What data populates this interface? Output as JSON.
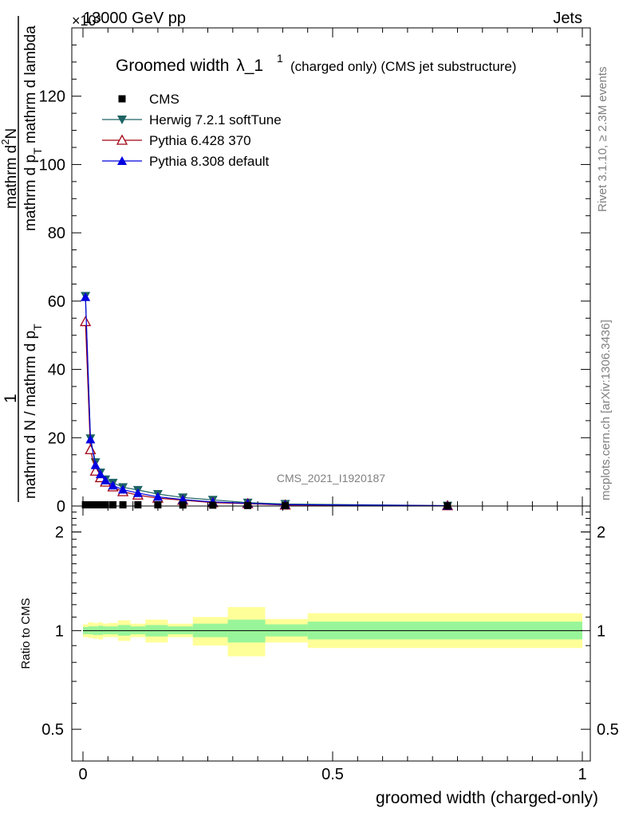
{
  "header": {
    "exponent": "×10³",
    "left": "13000 GeV pp",
    "right": "Jets"
  },
  "side_labels": {
    "rivet": "Rivet 3.1.10, ≥ 2.3M events",
    "mcplots": "mcplots.cern.ch [arXiv:1306.3436]"
  },
  "watermark": "CMS_2021_I1920187",
  "chart_data": [
    {
      "type": "line",
      "title": {
        "main": "Groomed width",
        "lambda": "λ_1",
        "sup": "1",
        "sub": "(charged only) (CMS jet substructure)"
      },
      "ylabel": {
        "one": "1",
        "denominator": "mathrm d N / mathrm d p",
        "denominator_sub": "T",
        "numerator": "mathrm d",
        "numerator_sup": "2",
        "numerator_N": "N",
        "lower": "mathrm d p",
        "lower_sub": "T",
        "lower_tail": " mathrm d lambda"
      },
      "xlabel": "",
      "xlim": [
        0,
        1
      ],
      "ylim": [
        0,
        140
      ],
      "x_ticks": [
        0,
        0.5,
        1
      ],
      "y_ticks": [
        0,
        20,
        40,
        60,
        80,
        100,
        120
      ],
      "x": [
        0.005,
        0.015,
        0.025,
        0.035,
        0.045,
        0.06,
        0.08,
        0.11,
        0.15,
        0.2,
        0.26,
        0.33,
        0.405,
        0.73
      ],
      "series": [
        {
          "name": "CMS",
          "color": "#000000",
          "marker": "square",
          "values": [
            0.35,
            0.35,
            0.35,
            0.35,
            0.35,
            0.35,
            0.35,
            0.35,
            0.35,
            0.3,
            0.25,
            0.15,
            0.1,
            0.05
          ]
        },
        {
          "name": "Herwig 7.2.1 softTune",
          "color": "#1d6363",
          "marker": "triangle-down",
          "values": [
            61.5,
            19.8,
            12.8,
            9.8,
            7.8,
            6.8,
            5.5,
            4.7,
            3.5,
            2.5,
            1.8,
            1.0,
            0.6,
            0.1
          ]
        },
        {
          "name": "Pythia 6.428 370",
          "color": "#a00010",
          "marker": "triangle-open",
          "values": [
            54,
            16.5,
            10.2,
            8.3,
            7.0,
            5.6,
            4.2,
            3.2,
            2.3,
            1.7,
            1.0,
            0.7,
            0.3,
            0.1
          ]
        },
        {
          "name": "Pythia 8.308 default",
          "color": "#0000e0",
          "marker": "triangle-up",
          "values": [
            61.2,
            19.5,
            12,
            9.3,
            7.5,
            6.0,
            4.8,
            3.8,
            2.7,
            1.9,
            1.2,
            0.8,
            0.4,
            0.1
          ]
        }
      ]
    },
    {
      "type": "area",
      "ylabel": "Ratio to CMS",
      "xlabel": "groomed width (charged-only)",
      "xlim": [
        0,
        1
      ],
      "ylim": [
        0.4,
        2.4
      ],
      "y_scale": "log",
      "x_ticks": [
        0,
        0.5,
        1
      ],
      "x_tick_labels": [
        "0",
        "0.5",
        "1"
      ],
      "y_ticks": [
        0.5,
        1,
        2
      ],
      "y_tick_labels": [
        "0.5",
        "1",
        "2"
      ],
      "bins": [
        {
          "lo": 0.0,
          "hi": 0.01,
          "inner": [
            0.975,
            1.025
          ],
          "outer": [
            0.955,
            1.045
          ]
        },
        {
          "lo": 0.01,
          "hi": 0.02,
          "inner": [
            0.975,
            1.03
          ],
          "outer": [
            0.95,
            1.06
          ]
        },
        {
          "lo": 0.02,
          "hi": 0.03,
          "inner": [
            0.97,
            1.03
          ],
          "outer": [
            0.945,
            1.055
          ]
        },
        {
          "lo": 0.03,
          "hi": 0.04,
          "inner": [
            0.97,
            1.035
          ],
          "outer": [
            0.94,
            1.06
          ]
        },
        {
          "lo": 0.04,
          "hi": 0.05,
          "inner": [
            0.975,
            1.03
          ],
          "outer": [
            0.955,
            1.05
          ]
        },
        {
          "lo": 0.05,
          "hi": 0.07,
          "inner": [
            0.975,
            1.03
          ],
          "outer": [
            0.955,
            1.055
          ]
        },
        {
          "lo": 0.07,
          "hi": 0.095,
          "inner": [
            0.965,
            1.04
          ],
          "outer": [
            0.93,
            1.075
          ]
        },
        {
          "lo": 0.095,
          "hi": 0.125,
          "inner": [
            0.975,
            1.03
          ],
          "outer": [
            0.955,
            1.05
          ]
        },
        {
          "lo": 0.125,
          "hi": 0.17,
          "inner": [
            0.96,
            1.04
          ],
          "outer": [
            0.92,
            1.08
          ]
        },
        {
          "lo": 0.17,
          "hi": 0.22,
          "inner": [
            0.975,
            1.03
          ],
          "outer": [
            0.955,
            1.05
          ]
        },
        {
          "lo": 0.22,
          "hi": 0.29,
          "inner": [
            0.955,
            1.05
          ],
          "outer": [
            0.9,
            1.1
          ]
        },
        {
          "lo": 0.29,
          "hi": 0.365,
          "inner": [
            0.92,
            1.08
          ],
          "outer": [
            0.835,
            1.18
          ]
        },
        {
          "lo": 0.365,
          "hi": 0.45,
          "inner": [
            0.96,
            1.045
          ],
          "outer": [
            0.92,
            1.085
          ]
        },
        {
          "lo": 0.45,
          "hi": 1.0,
          "inner": [
            0.94,
            1.065
          ],
          "outer": [
            0.885,
            1.13
          ]
        }
      ],
      "colors": {
        "inner": "#99f599",
        "outer": "#ffff99"
      }
    }
  ]
}
